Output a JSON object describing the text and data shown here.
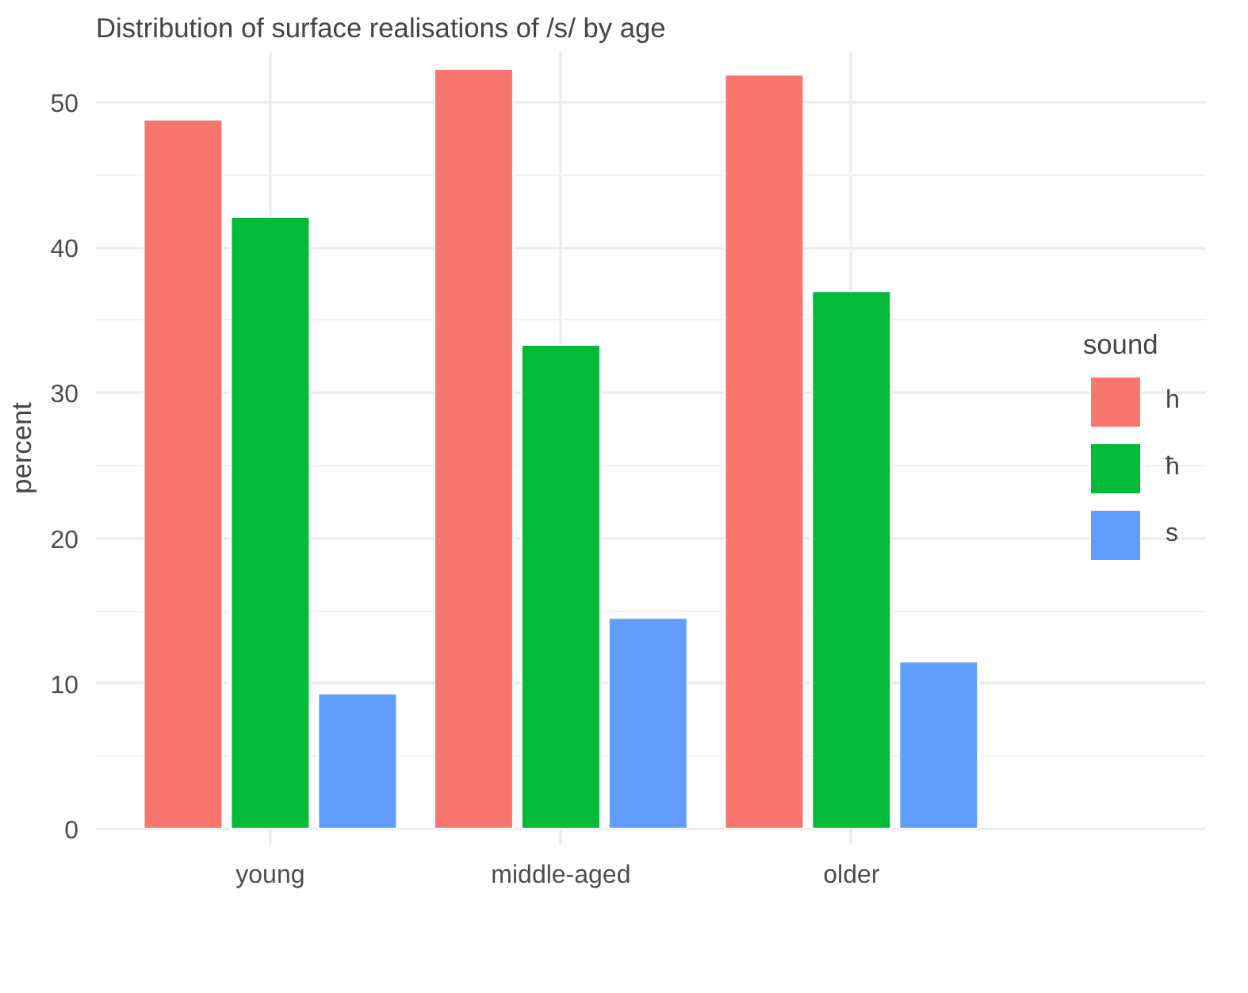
{
  "chart_data": {
    "type": "bar",
    "title": "Distribution of surface realisations of /s/ by age",
    "xlabel": null,
    "ylabel": "percent",
    "legend_title": "sound",
    "categories": [
      "young",
      "middle-aged",
      "older"
    ],
    "series": [
      {
        "name": "h",
        "color": "#f8766d",
        "values": [
          48.8,
          52.3,
          51.9
        ]
      },
      {
        "name": "ħ",
        "color": "#00ba38",
        "values": [
          42.1,
          33.3,
          37.0
        ]
      },
      {
        "name": "s",
        "color": "#619cff",
        "values": [
          9.3,
          14.5,
          11.5
        ]
      }
    ],
    "ylim": [
      -1.1,
      53.5
    ],
    "yticks": [
      0,
      10,
      20,
      30,
      40,
      50
    ],
    "grid": true,
    "legend": "right"
  }
}
